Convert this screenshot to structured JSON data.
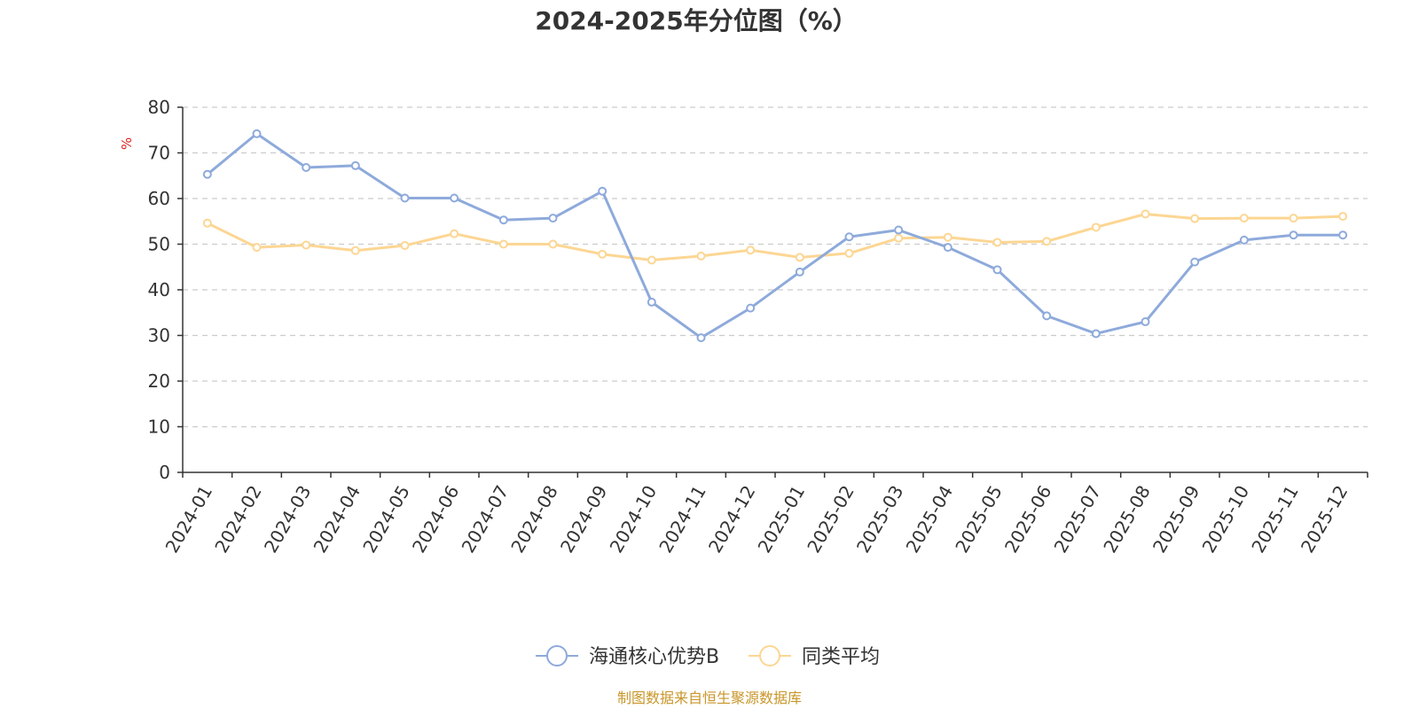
{
  "chart_data": {
    "type": "line",
    "title": "2024-2025年分位图（%）",
    "ylabel": "%",
    "ylim": [
      0,
      80
    ],
    "yticks": [
      0,
      10,
      20,
      30,
      40,
      50,
      60,
      70,
      80
    ],
    "grid": true,
    "legend_position": "bottom-center",
    "categories": [
      "2024-01",
      "2024-02",
      "2024-03",
      "2024-04",
      "2024-05",
      "2024-06",
      "2024-07",
      "2024-08",
      "2024-09",
      "2024-10",
      "2024-11",
      "2024-12",
      "2025-01",
      "2025-02",
      "2025-03",
      "2025-04",
      "2025-05",
      "2025-06",
      "2025-07",
      "2025-08",
      "2025-09",
      "2025-10",
      "2025-11",
      "2025-12"
    ],
    "series": [
      {
        "name": "海通核心优势B",
        "color": "#8eaadb",
        "values": [
          65.3,
          74.2,
          66.8,
          67.2,
          60.1,
          60.1,
          55.3,
          55.7,
          61.6,
          37.3,
          29.5,
          36.0,
          43.9,
          51.6,
          53.1,
          49.3,
          44.4,
          34.3,
          30.4,
          33.0,
          46.1,
          50.9,
          52.0,
          52.0
        ]
      },
      {
        "name": "同类平均",
        "color": "#fcd693",
        "values": [
          54.6,
          49.3,
          49.8,
          48.6,
          49.7,
          52.3,
          50.0,
          50.0,
          47.8,
          46.5,
          47.4,
          48.7,
          47.1,
          48.0,
          51.3,
          51.5,
          50.4,
          50.6,
          53.7,
          56.6,
          55.6,
          55.7,
          55.7,
          56.1
        ]
      }
    ],
    "source": "制图数据来自恒生聚源数据库"
  }
}
